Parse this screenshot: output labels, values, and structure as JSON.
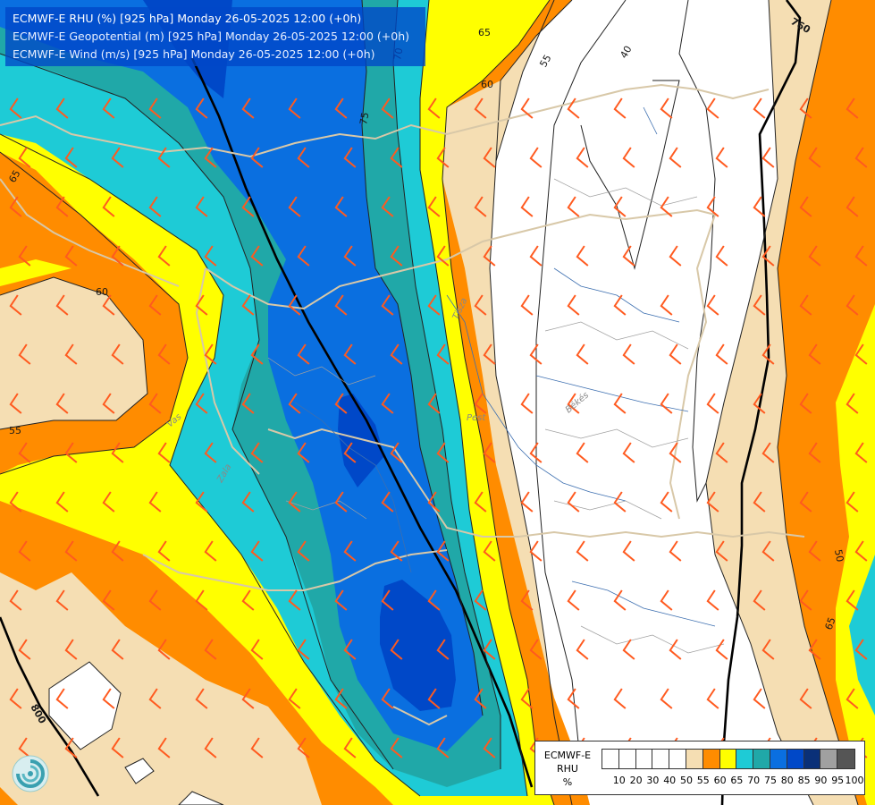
{
  "header": {
    "line1": "ECMWF-E RHU (%) [925 hPa] Monday 26-05-2025 12:00 (+0h)",
    "line2": "ECMWF-E Geopotential (m) [925 hPa] Monday 26-05-2025 12:00 (+0h)",
    "line3": "ECMWF-E Wind (m/s) [925 hPa] Monday 26-05-2025 12:00 (+0h)"
  },
  "contour_labels": {
    "geo_760": "760",
    "geo_800": "800",
    "rh_65_top": "65",
    "rh_60_top": "60",
    "rh_55_top": "55",
    "rh_40_top": "40",
    "rh_70_top": "70",
    "rh_75_mid": "75",
    "rh_65_left": "65",
    "rh_60_left": "60",
    "rh_55_left": "55",
    "rh_50_right": "50",
    "rh_65_right": "65",
    "rh_50_bottom": "50"
  },
  "places": {
    "p1": "Tisza",
    "p2": "Pest",
    "p3": "Békés",
    "p4": "Zala",
    "p5": "Vas"
  },
  "legend": {
    "title1": "ECMWF-E",
    "title2": "RHU",
    "title3": "%",
    "ticks": [
      "10",
      "20",
      "30",
      "40",
      "50",
      "55",
      "60",
      "65",
      "70",
      "75",
      "80",
      "85",
      "90",
      "95",
      "100"
    ],
    "colors": [
      "#ffffff",
      "#ffffff",
      "#ffffff",
      "#ffffff",
      "#ffffff",
      "#f5deb3",
      "#ff8c00",
      "#ffff00",
      "#1ecbd6",
      "#20a8a8",
      "#0a6fe0",
      "#0048c8",
      "#0a3078",
      "#a0a0a0",
      "#555555"
    ]
  },
  "colors": {
    "rh50": "#f5deb3",
    "rh55": "#ff8c00",
    "rh60": "#ffff00",
    "rh65": "#1ecbd6",
    "rh70": "#20a8a8",
    "rh75": "#0a6fe0",
    "rh80": "#0048c8",
    "rh85": "#0a3078",
    "wind_barb": "#ff5a1f",
    "border": "#d8c8a8"
  },
  "logo_icon": "ecmwf-swirl-logo-icon"
}
